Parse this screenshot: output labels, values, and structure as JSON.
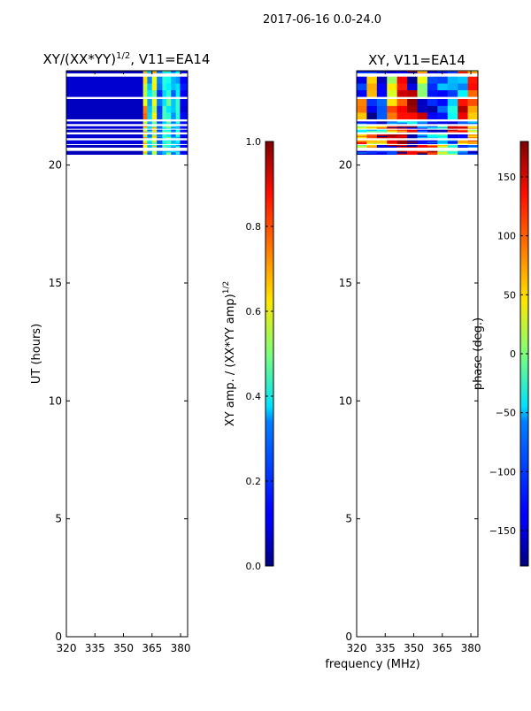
{
  "chart_data": [
    {
      "type": "heatmap",
      "suptitle": "2017-06-16 0.0-24.0",
      "title": "XY/(XX*YY)",
      "title_sup": "1/2",
      "title_suffix": ", V11=EA14",
      "xlabel": "frequency (MHz)",
      "ylabel": "UT (hours)",
      "xlim": [
        320,
        383.7
      ],
      "ylim": [
        0,
        24
      ],
      "xticks": [
        "320",
        "335",
        "350",
        "365",
        "380"
      ],
      "yticks": [
        "0",
        "5",
        "10",
        "15",
        "20"
      ],
      "xtick_values": [
        320,
        335,
        350,
        365,
        380
      ],
      "ytick_values": [
        0,
        5,
        10,
        15,
        20
      ],
      "time_segments": [
        [
          20.45,
          20.6
        ],
        [
          20.75,
          20.85
        ],
        [
          20.9,
          21.05
        ],
        [
          21.15,
          21.3
        ],
        [
          21.4,
          21.5
        ],
        [
          21.55,
          21.65
        ],
        [
          21.75,
          21.85
        ],
        [
          21.95,
          22.8
        ],
        [
          22.9,
          23.75
        ],
        [
          23.9,
          24.0
        ]
      ],
      "freq_bins": [
        [
          320,
          360.3
        ],
        [
          360.3,
          362.5
        ],
        [
          362.5,
          365
        ],
        [
          365,
          367.5
        ],
        [
          367.5,
          370.4
        ],
        [
          370.4,
          372.5
        ],
        [
          372.5,
          375
        ],
        [
          375,
          377.5
        ],
        [
          377.5,
          379.7
        ],
        [
          379.7,
          383.7
        ]
      ],
      "amplitude_profile": [
        0.08,
        0.62,
        0.3,
        0.6,
        0.22,
        0.38,
        0.42,
        0.28,
        0.36,
        0.12
      ],
      "colorbar": {
        "label": "XY amp. / (XX*YY amp)",
        "label_sup": "1/2",
        "range": [
          0,
          1
        ],
        "ticks": [
          "0.0",
          "0.2",
          "0.4",
          "0.6",
          "0.8",
          "1.0"
        ],
        "tick_values": [
          0,
          0.2,
          0.4,
          0.6,
          0.8,
          1.0
        ]
      }
    },
    {
      "type": "heatmap",
      "title": "XY, V11=EA14",
      "xlim": [
        320,
        383.7
      ],
      "ylim": [
        0,
        24
      ],
      "xticks": [
        "320",
        "335",
        "350",
        "365",
        "380"
      ],
      "yticks": [
        "0",
        "5",
        "10",
        "15",
        "20"
      ],
      "xtick_values": [
        320,
        335,
        350,
        365,
        380
      ],
      "ytick_values": [
        0,
        5,
        10,
        15,
        20
      ],
      "time_segments": [
        [
          20.45,
          20.6
        ],
        [
          20.75,
          20.85
        ],
        [
          20.9,
          21.05
        ],
        [
          21.15,
          21.3
        ],
        [
          21.4,
          21.5
        ],
        [
          21.55,
          21.65
        ],
        [
          21.75,
          21.85
        ],
        [
          21.95,
          22.8
        ],
        [
          22.9,
          23.75
        ],
        [
          23.9,
          24.0
        ]
      ],
      "phase_deg": [
        [
          -120,
          -130,
          -110,
          -100,
          170,
          160,
          150,
          140,
          20,
          -20,
          -120,
          -130
        ],
        [
          20,
          60,
          -150,
          -160,
          150,
          170,
          160,
          120,
          40,
          -30,
          -120,
          -110
        ],
        [
          100,
          60,
          40,
          130,
          160,
          170,
          -150,
          -120,
          -60,
          -120,
          60,
          80
        ],
        [
          60,
          120,
          150,
          170,
          160,
          -170,
          -100,
          -60,
          -50,
          -130,
          -150,
          60
        ],
        [
          -60,
          -40,
          -20,
          60,
          80,
          120,
          -120,
          -150,
          -160,
          150,
          120,
          40
        ],
        [
          40,
          60,
          80,
          150,
          170,
          -160,
          -100,
          -80,
          -40,
          150,
          130,
          60
        ],
        [
          -130,
          -120,
          -140,
          -100,
          -80,
          -60,
          -90,
          -120,
          -140,
          -150,
          -120,
          -100
        ],
        [
          60,
          -150,
          -120,
          80,
          120,
          150,
          170,
          -150,
          -100,
          -50,
          130,
          80
        ],
        [
          -140,
          50,
          -130,
          40,
          130,
          -170,
          20,
          -120,
          -100,
          -90,
          -60,
          100
        ],
        [
          -120,
          -130,
          -150,
          -140,
          -160,
          170,
          80,
          -120,
          -130,
          -140,
          120,
          60
        ]
      ],
      "colorbar": {
        "label": "phase (deg.)",
        "range": [
          -180,
          180
        ],
        "ticks": [
          "−150",
          "−100",
          "−50",
          "0",
          "50",
          "100",
          "150"
        ],
        "tick_values": [
          -150,
          -100,
          -50,
          0,
          50,
          100,
          150
        ]
      }
    }
  ]
}
